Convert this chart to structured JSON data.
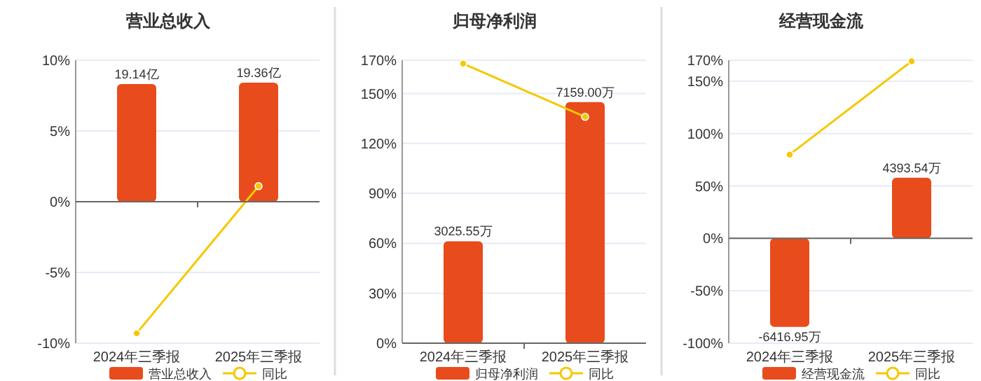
{
  "chart_data": [
    {
      "type": "bar",
      "title": "营业总收入",
      "categories": [
        "2024年三季报",
        "2025年三季报"
      ],
      "ylim": [
        -10,
        10
      ],
      "yticks": [
        {
          "value": -10,
          "label": "-10%"
        },
        {
          "value": -5,
          "label": "-5%"
        },
        {
          "value": 0,
          "label": "0%"
        },
        {
          "value": 5,
          "label": "5%"
        },
        {
          "value": 10,
          "label": "10%"
        }
      ],
      "y2lim": [
        -23,
        23
      ],
      "grid": "y",
      "legend": "bottom",
      "series": [
        {
          "name": "营业总收入",
          "color": "#e84c1c",
          "axis": "y2",
          "values": [
            19.14,
            19.36
          ],
          "value_labels": [
            "19.14亿",
            "19.36亿"
          ]
        },
        {
          "type": "line",
          "name": "同比",
          "color": "#f5c800",
          "marker": "circle",
          "values": [
            -9.3,
            1.1
          ]
        }
      ]
    },
    {
      "type": "bar",
      "title": "归母净利润",
      "categories": [
        "2024年三季报",
        "2025年三季报"
      ],
      "ylim": [
        0,
        170
      ],
      "yticks": [
        {
          "value": 0,
          "label": "0%"
        },
        {
          "value": 30,
          "label": "30%"
        },
        {
          "value": 60,
          "label": "60%"
        },
        {
          "value": 90,
          "label": "90%"
        },
        {
          "value": 120,
          "label": "120%"
        },
        {
          "value": 150,
          "label": "150%"
        },
        {
          "value": 170,
          "label": "170%"
        }
      ],
      "y2lim": [
        0,
        8400
      ],
      "grid": "y",
      "legend": "bottom",
      "series": [
        {
          "name": "归母净利润",
          "color": "#e84c1c",
          "axis": "y2",
          "values": [
            3025.55,
            7159.0
          ],
          "value_labels": [
            "3025.55万",
            "7159.00万"
          ]
        },
        {
          "type": "line",
          "name": "同比",
          "color": "#f5c800",
          "marker": "circle",
          "values": [
            168,
            136
          ]
        }
      ]
    },
    {
      "type": "bar",
      "title": "经营现金流",
      "categories": [
        "2024年三季报",
        "2025年三季报"
      ],
      "ylim": [
        -100,
        170
      ],
      "yticks": [
        {
          "value": -100,
          "label": "-100%"
        },
        {
          "value": -50,
          "label": "-50%"
        },
        {
          "value": 0,
          "label": "0%"
        },
        {
          "value": 50,
          "label": "50%"
        },
        {
          "value": 100,
          "label": "100%"
        },
        {
          "value": 150,
          "label": "150%"
        },
        {
          "value": 170,
          "label": "170%"
        }
      ],
      "y2lim": [
        -7600,
        12920
      ],
      "grid": "y",
      "legend": "bottom",
      "series": [
        {
          "name": "经营现金流",
          "color": "#e84c1c",
          "axis": "y2",
          "values": [
            -6416.95,
            4393.54
          ],
          "value_labels": [
            "-6416.95万",
            "4393.54万"
          ]
        },
        {
          "type": "line",
          "name": "同比",
          "color": "#f5c800",
          "marker": "circle",
          "values": [
            80,
            169
          ]
        }
      ]
    }
  ]
}
